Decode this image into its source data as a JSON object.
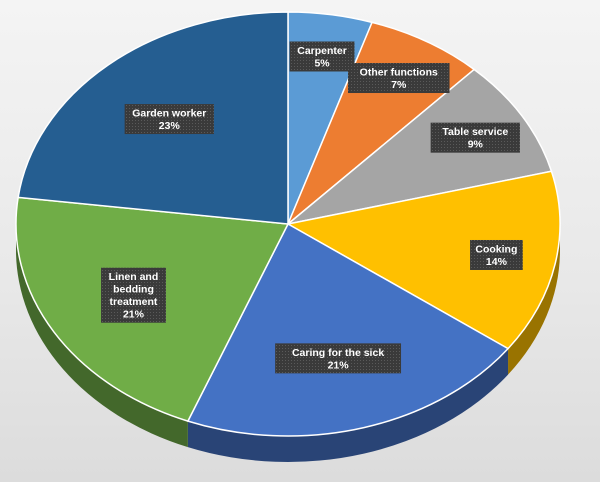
{
  "chart_data": {
    "type": "pie",
    "title": "",
    "slices": [
      {
        "label": "Carpenter",
        "label_lines": [
          "Carpenter"
        ],
        "value": 5,
        "display": "5%",
        "color": "#5b9bd5"
      },
      {
        "label": "Other functions",
        "label_lines": [
          "Other functions"
        ],
        "value": 7,
        "display": "7%",
        "color": "#ed7d31"
      },
      {
        "label": "Table service",
        "label_lines": [
          "Table service"
        ],
        "value": 9,
        "display": "9%",
        "color": "#a5a5a5"
      },
      {
        "label": "Cooking",
        "label_lines": [
          "Cooking"
        ],
        "value": 14,
        "display": "14%",
        "color": "#ffc000"
      },
      {
        "label": "Caring for the sick",
        "label_lines": [
          "Caring for the sick"
        ],
        "value": 21,
        "display": "21%",
        "color": "#4472c4"
      },
      {
        "label": "Linen and bedding treatment",
        "label_lines": [
          "Linen and",
          "bedding",
          "treatment"
        ],
        "value": 21,
        "display": "21%",
        "color": "#70ad47"
      },
      {
        "label": "Garden worker",
        "label_lines": [
          "Garden worker"
        ],
        "value": 23,
        "display": "23%",
        "color": "#255e91"
      }
    ],
    "style": "3d-pie",
    "legend": "none",
    "data_labels": "callout-box"
  }
}
